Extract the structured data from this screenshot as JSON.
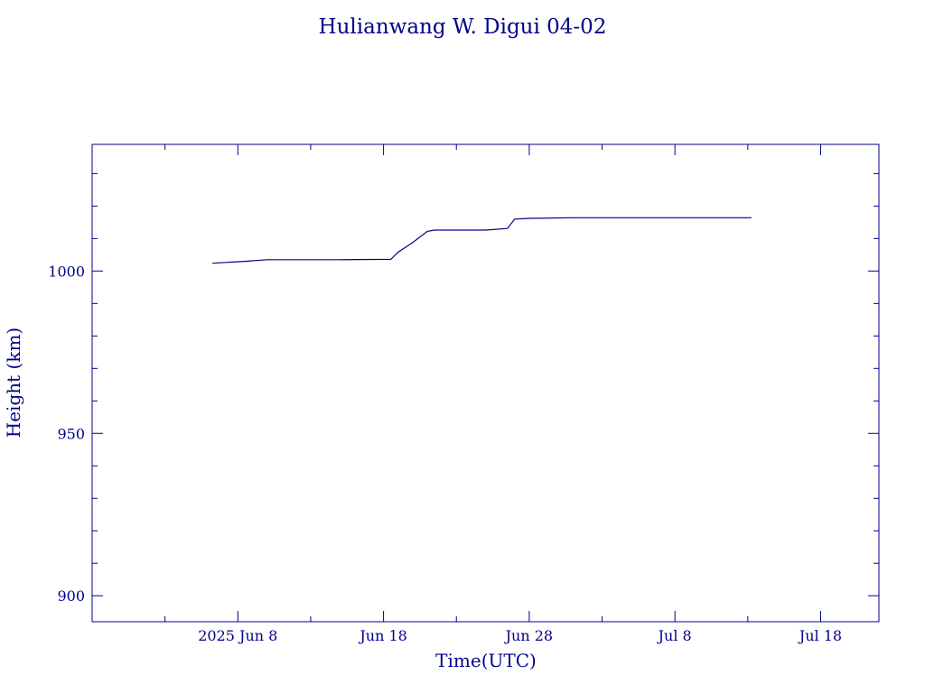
{
  "chart_data": {
    "type": "line",
    "title": "Hulianwang W. Digui 04-02",
    "xlabel": "Time(UTC)",
    "ylabel": "Height (km)",
    "color": "#00008b",
    "x_range": [
      "2025-05-29",
      "2025-07-22"
    ],
    "ylim": [
      892,
      1039
    ],
    "x_ticks": [
      {
        "date": "2025-06-08",
        "label": "2025 Jun  8"
      },
      {
        "date": "2025-06-18",
        "label": "Jun 18"
      },
      {
        "date": "2025-06-28",
        "label": "Jun 28"
      },
      {
        "date": "2025-07-08",
        "label": "Jul  8"
      },
      {
        "date": "2025-07-18",
        "label": "Jul 18"
      }
    ],
    "x_minor_ticks": [
      "2025-06-03",
      "2025-06-13",
      "2025-06-23",
      "2025-07-03",
      "2025-07-13"
    ],
    "y_ticks": [
      900,
      950,
      1000
    ],
    "y_minor_ticks": [
      910,
      920,
      930,
      940,
      960,
      970,
      980,
      990,
      1010,
      1020,
      1030
    ],
    "grid": false,
    "series": [
      {
        "x": [
          "2025-06-06 06:00",
          "2025-06-08 12:00",
          "2025-06-10 00:00",
          "2025-06-15 00:00",
          "2025-06-18 12:00",
          "2025-06-19 00:00",
          "2025-06-20 00:00",
          "2025-06-21 00:00",
          "2025-06-21 12:00",
          "2025-06-25 00:00",
          "2025-06-26 12:00",
          "2025-06-27 00:00",
          "2025-06-28 00:00",
          "2025-07-01 00:00",
          "2025-07-13 06:00"
        ],
        "y": [
          1002.4,
          1003.0,
          1003.5,
          1003.5,
          1003.6,
          1005.8,
          1008.8,
          1012.2,
          1012.6,
          1012.6,
          1013.1,
          1016.0,
          1016.2,
          1016.4,
          1016.4
        ]
      }
    ]
  }
}
